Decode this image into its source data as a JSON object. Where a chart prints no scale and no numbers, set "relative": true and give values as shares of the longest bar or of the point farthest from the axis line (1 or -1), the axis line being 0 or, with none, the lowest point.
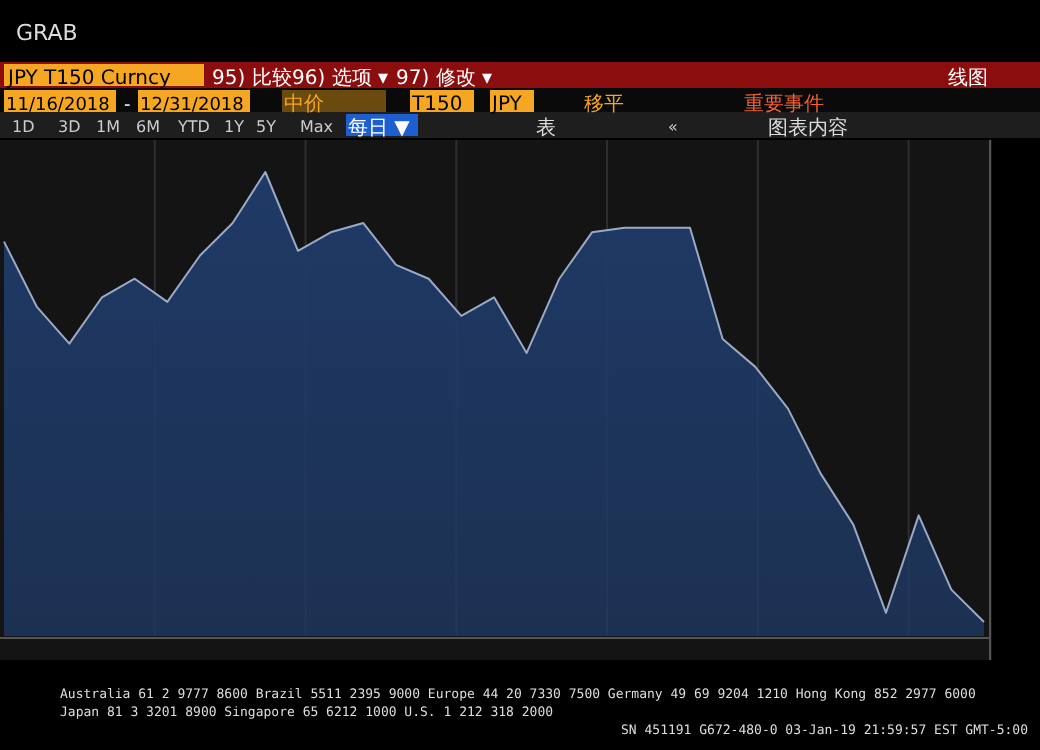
{
  "chart_data": {
    "type": "area",
    "title": "JPY T150 Curncy",
    "relative": true,
    "grid": "x",
    "categories": [
      null,
      null,
      null,
      null,
      null,
      null,
      null,
      null,
      null,
      null,
      null,
      null,
      null,
      null,
      null,
      null,
      null,
      null,
      null,
      null,
      null,
      null,
      null,
      null,
      null,
      null,
      null,
      null,
      null,
      null,
      null
    ],
    "series": [
      {
        "color": "#1f3a66",
        "values": [
          0.85,
          0.71,
          0.63,
          0.73,
          0.77,
          0.72,
          0.82,
          0.89,
          1,
          0.83,
          0.87,
          0.89,
          0.8,
          0.77,
          0.69,
          0.73,
          0.61,
          0.77,
          0.87,
          0.88,
          0.88,
          0.88,
          0.64,
          0.58,
          0.49,
          0.35,
          0.24,
          0.05,
          0.26,
          0.1,
          0.03
        ]
      }
    ],
    "annotations": [
      "GRAB",
      "95) 比较",
      "96) 选项 ▾",
      "97) 修改 ▾",
      "线图",
      "11/16/2018",
      "-",
      "12/31/2018",
      "中价",
      "T150",
      "JPY",
      "移平",
      "重要事件",
      "1D",
      "3D",
      "1M",
      "6M",
      "YTD",
      "1Y",
      "5Y",
      "Max",
      "每日 ▼",
      "表",
      "«",
      "图表内容",
      "Australia 61 2 9777 8600 Brazil 5511 2395 9000 Europe 44 20 7330 7500 Germany 49 69 9204 1210 Hong Kong 852 2977 6000",
      "Japan 81 3 3201 8900 Singapore 65 6212 1000 U.S. 1 212 318 2000",
      "SN 451191 G672-480-0 03-Jan-19 21:59:57 EST GMT-5:00"
    ]
  }
}
